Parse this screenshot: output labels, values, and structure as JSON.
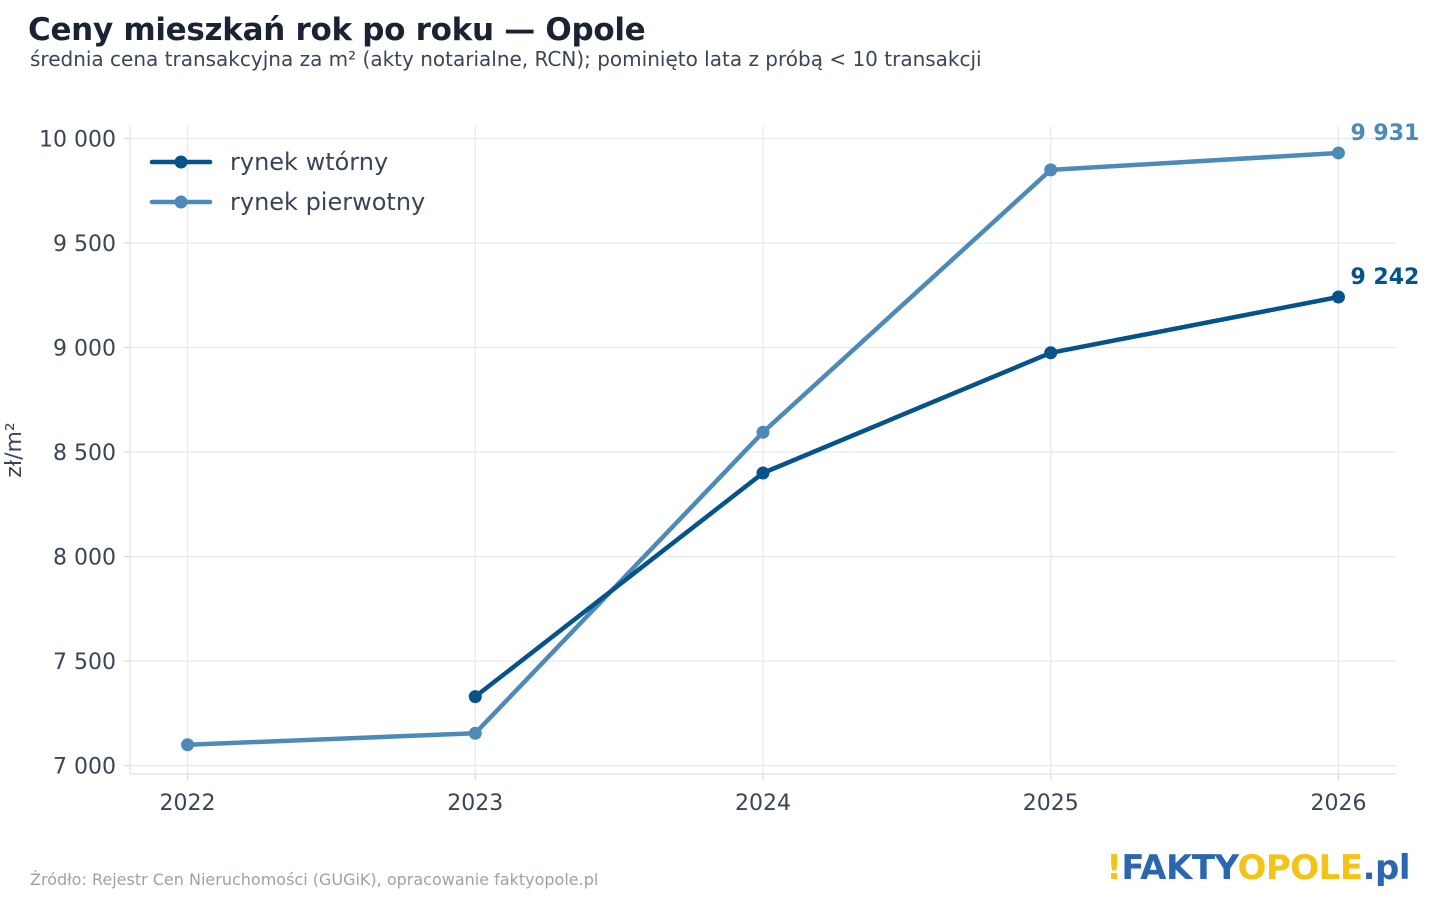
{
  "header": {
    "title": "Ceny mieszkań rok po roku — Opole",
    "subtitle": "średnia cena transakcyjna za m² (akty notarialne, RCN); pominięto lata z próbą < 10 transakcji"
  },
  "footer": {
    "source": "Źródło: Rejestr Cen Nieruchomości (GUGiK), opracowanie faktyopole.pl",
    "logo_prefix": "!",
    "logo_blue": "FAKTY",
    "logo_yellow": "OPOLE",
    "logo_suffix": ".pl",
    "logo_colors": {
      "blue": "#2b67b0",
      "yellow": "#f3c317"
    }
  },
  "chart_data": {
    "type": "line",
    "ylabel": "zł/m²",
    "xlabel": "",
    "x": [
      2022,
      2023,
      2024,
      2025,
      2026
    ],
    "xlim": [
      2021.8,
      2026.2
    ],
    "ylim": [
      6960,
      10060
    ],
    "yticks": [
      7000,
      7500,
      8000,
      8500,
      9000,
      9500,
      10000
    ],
    "ytick_labels": [
      "7 000",
      "7 500",
      "8 000",
      "8 500",
      "9 000",
      "9 500",
      "10 000"
    ],
    "xtick_labels": [
      "2022",
      "2023",
      "2024",
      "2025",
      "2026"
    ],
    "grid": true,
    "legend_position": "top-left",
    "series": [
      {
        "name": "rynek wtórny",
        "color": "#04538a",
        "values": [
          null,
          7330,
          8400,
          8975,
          9242
        ],
        "end_label": "9 242"
      },
      {
        "name": "rynek pierwotny",
        "color": "#4e8ab8",
        "values": [
          7100,
          7155,
          8595,
          9850,
          9931
        ],
        "end_label": "9 931"
      }
    ]
  }
}
